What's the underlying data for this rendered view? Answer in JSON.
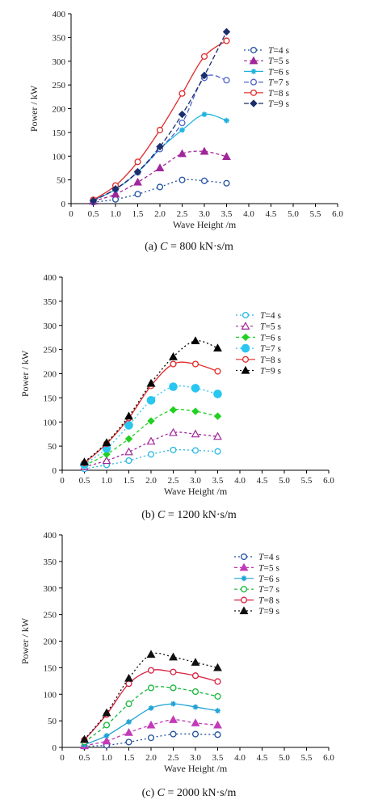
{
  "chart_data": [
    {
      "type": "line",
      "caption_prefix": "(a) ",
      "caption_var": "C",
      "caption_rest": " = 800 kN·s/m",
      "xlabel": "Wave Height /m",
      "ylabel": "Power / kW",
      "xlim": [
        0,
        6
      ],
      "ylim": [
        0,
        400
      ],
      "xticks": [
        "0",
        "0.5",
        "1.0",
        "1.5",
        "2.0",
        "2.5",
        "3.0",
        "3.5",
        "4.0",
        "4.5",
        "5.0",
        "5.5",
        "6.0"
      ],
      "yticks": [
        "0",
        "50",
        "100",
        "150",
        "200",
        "250",
        "300",
        "350",
        "400"
      ],
      "grid": false,
      "legend_position": "right",
      "x": [
        0.5,
        1.0,
        1.5,
        2.0,
        2.5,
        3.0,
        3.5
      ],
      "series": [
        {
          "name": "T=4 s",
          "name_var": "T",
          "name_rest": "=4 s",
          "values": [
            3,
            9,
            20,
            35,
            50,
            48,
            43
          ],
          "color": "#1e4f9e",
          "marker": "circle-open",
          "dash": "2,3"
        },
        {
          "name": "T=5 s",
          "name_var": "T",
          "name_rest": "=5 s",
          "values": [
            5,
            20,
            45,
            75,
            105,
            110,
            99
          ],
          "color": "#a0279a",
          "marker": "triangle",
          "dash": "4,3"
        },
        {
          "name": "T=6 s",
          "name_var": "T",
          "name_rest": "=6 s",
          "values": [
            7,
            30,
            66,
            115,
            155,
            188,
            175
          ],
          "color": "#1fb3dd",
          "marker": "star",
          "dash": ""
        },
        {
          "name": "T=7 s",
          "name_var": "T",
          "name_rest": "=7 s",
          "values": [
            7,
            30,
            66,
            115,
            170,
            265,
            260
          ],
          "color": "#4a63c8",
          "marker": "circle-open",
          "dash": "6,3"
        },
        {
          "name": "T=8 s",
          "name_var": "T",
          "name_rest": "=8 s",
          "values": [
            8,
            38,
            88,
            155,
            232,
            310,
            343
          ],
          "color": "#e02a2a",
          "marker": "circle-open",
          "dash": ""
        },
        {
          "name": "T=9 s",
          "name_var": "T",
          "name_rest": "=9 s",
          "values": [
            6,
            31,
            67,
            120,
            188,
            270,
            362
          ],
          "color": "#1b2f6b",
          "marker": "diamond",
          "dash": "6,3"
        }
      ]
    },
    {
      "type": "line",
      "caption_prefix": "(b) ",
      "caption_var": "C",
      "caption_rest": " = 1200 kN·s/m",
      "xlabel": "Wave Height /m",
      "ylabel": "Power / kW",
      "xlim": [
        0,
        6
      ],
      "ylim": [
        0,
        400
      ],
      "xticks": [
        "0",
        "0.5",
        "1.0",
        "1.5",
        "2.0",
        "2.5",
        "3.0",
        "3.5",
        "4.0",
        "4.5",
        "5.0",
        "5.5",
        "6.0"
      ],
      "yticks": [
        "0",
        "50",
        "100",
        "150",
        "200",
        "250",
        "300",
        "350",
        "400"
      ],
      "grid": false,
      "legend_position": "right",
      "x": [
        0.5,
        1.0,
        1.5,
        2.0,
        2.5,
        3.0,
        3.5
      ],
      "series": [
        {
          "name": "T=4 s",
          "name_var": "T",
          "name_rest": "=4 s",
          "values": [
            3,
            11,
            20,
            33,
            42,
            41,
            39
          ],
          "color": "#25b8e0",
          "marker": "circle-open",
          "dash": "2,3"
        },
        {
          "name": "T=5 s",
          "name_var": "T",
          "name_rest": "=5 s",
          "values": [
            7,
            20,
            38,
            60,
            78,
            75,
            70
          ],
          "color": "#a0279a",
          "marker": "triangle-open",
          "dash": "3,3"
        },
        {
          "name": "T=6 s",
          "name_var": "T",
          "name_rest": "=6 s",
          "values": [
            10,
            33,
            65,
            102,
            125,
            122,
            112
          ],
          "color": "#22d022",
          "marker": "diamond",
          "dash": "4,3"
        },
        {
          "name": "T=7 s",
          "name_var": "T",
          "name_rest": "=7 s",
          "values": [
            12,
            45,
            93,
            145,
            173,
            170,
            158
          ],
          "color": "#28c6f0",
          "marker": "circle",
          "dash": "2,3"
        },
        {
          "name": "T=8 s",
          "name_var": "T",
          "name_rest": "=8 s",
          "values": [
            15,
            55,
            108,
            175,
            220,
            220,
            205
          ],
          "color": "#e02a2a",
          "marker": "circle-open",
          "dash": ""
        },
        {
          "name": "T=9 s",
          "name_var": "T",
          "name_rest": "=9 s",
          "values": [
            17,
            57,
            112,
            180,
            235,
            268,
            253
          ],
          "color": "#000000",
          "marker": "triangle",
          "dash": "2,3"
        }
      ]
    },
    {
      "type": "line",
      "caption_prefix": "(c) ",
      "caption_var": "C",
      "caption_rest": " = 2000 kN·s/m",
      "xlabel": "Wave Height /m",
      "ylabel": "Power / kW",
      "xlim": [
        0,
        6
      ],
      "ylim": [
        0,
        400
      ],
      "xticks": [
        "0",
        "0.5",
        "1.0",
        "1.5",
        "2.0",
        "2.5",
        "3.0",
        "3.5",
        "4.0",
        "4.5",
        "5.0",
        "5.5",
        "6.0"
      ],
      "yticks": [
        "0",
        "50",
        "100",
        "150",
        "200",
        "250",
        "300",
        "350",
        "400"
      ],
      "grid": false,
      "legend_position": "top-right",
      "x": [
        0.5,
        1.0,
        1.5,
        2.0,
        2.5,
        3.0,
        3.5
      ],
      "series": [
        {
          "name": "T=4 s",
          "name_var": "T",
          "name_rest": "=4 s",
          "values": [
            2,
            4,
            10,
            18,
            25,
            25,
            24
          ],
          "color": "#1e4f9e",
          "marker": "circle-open",
          "dash": "2,3"
        },
        {
          "name": "T=5 s",
          "name_var": "T",
          "name_rest": "=5 s",
          "values": [
            3,
            12,
            28,
            42,
            52,
            46,
            42
          ],
          "color": "#c23bb8",
          "marker": "triangle",
          "dash": "4,3"
        },
        {
          "name": "T=6 s",
          "name_var": "T",
          "name_rest": "=6 s",
          "values": [
            5,
            22,
            48,
            74,
            82,
            76,
            69
          ],
          "color": "#1fa3d6",
          "marker": "star",
          "dash": ""
        },
        {
          "name": "T=7 s",
          "name_var": "T",
          "name_rest": "=7 s",
          "values": [
            10,
            42,
            82,
            112,
            112,
            105,
            96
          ],
          "color": "#16b83a",
          "marker": "circle-open",
          "dash": "4,3"
        },
        {
          "name": "T=8 s",
          "name_var": "T",
          "name_rest": "=8 s",
          "values": [
            14,
            62,
            120,
            145,
            142,
            135,
            124
          ],
          "color": "#d82040",
          "marker": "circle-open",
          "dash": ""
        },
        {
          "name": "T=9 s",
          "name_var": "T",
          "name_rest": "=9 s",
          "values": [
            15,
            65,
            130,
            175,
            170,
            160,
            150
          ],
          "color": "#111111",
          "marker": "triangle",
          "dash": "2,3"
        }
      ]
    }
  ]
}
